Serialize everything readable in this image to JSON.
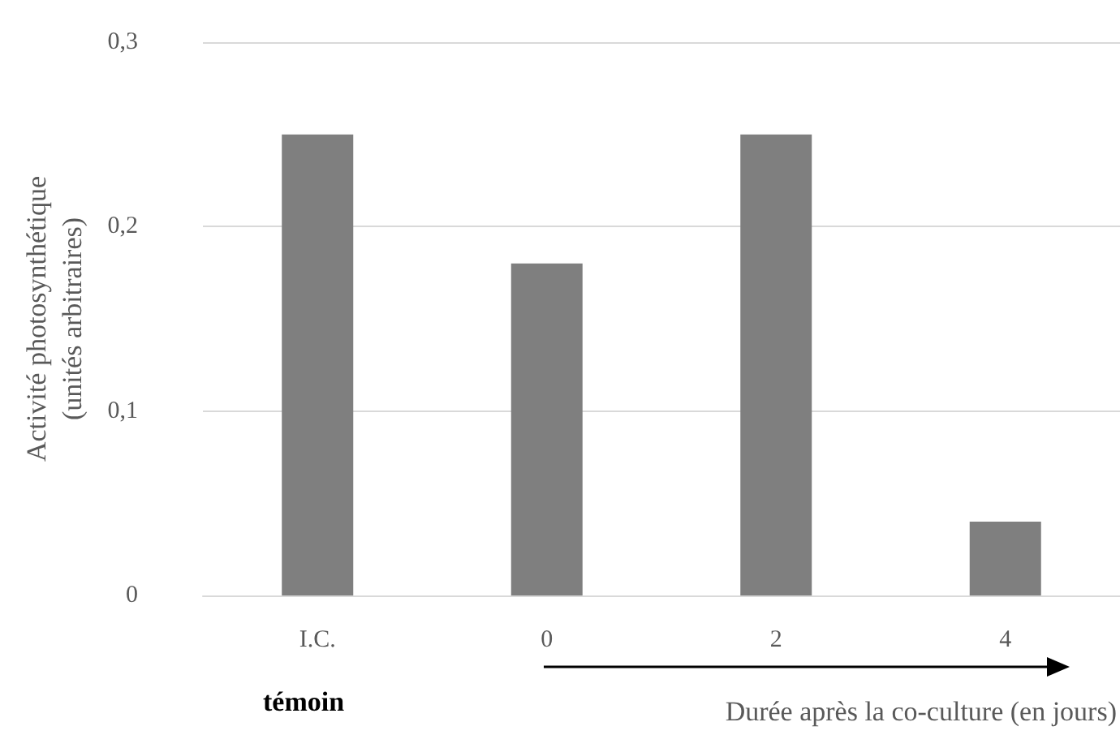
{
  "chart_data": {
    "type": "bar",
    "ylabel": "Activité photosynthétique\n(unités arbitraires)",
    "xlabel": "Durée après la co-culture (en jours)",
    "annotations": [
      "témoin"
    ],
    "categories": [
      "I.C.",
      "0",
      "2",
      "4"
    ],
    "values": [
      0.25,
      0.18,
      0.25,
      0.04
    ],
    "color": "#7f7f7f",
    "ylim": [
      0,
      0.3
    ],
    "yticks": [
      {
        "value": 0,
        "label": "0"
      },
      {
        "value": 0.1,
        "label": "0,1"
      },
      {
        "value": 0.2,
        "label": "0,2"
      },
      {
        "value": 0.3,
        "label": "0,3"
      }
    ],
    "grid": "y"
  }
}
